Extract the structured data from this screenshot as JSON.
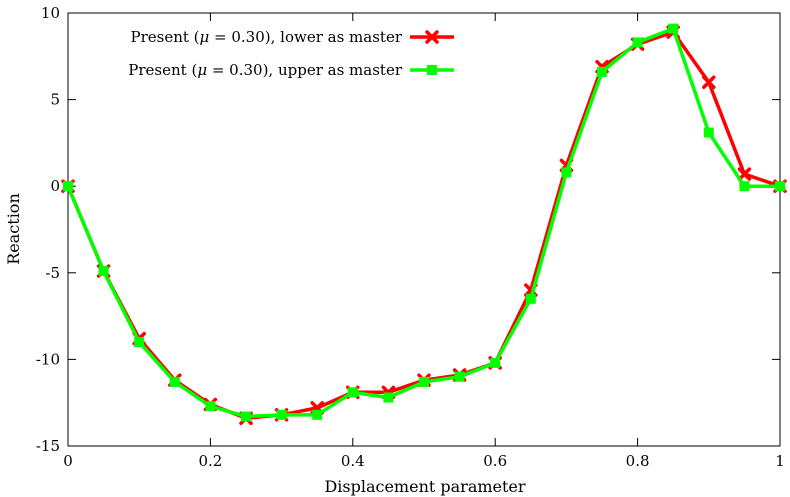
{
  "chart_data": {
    "type": "line",
    "xlabel": "Displacement parameter",
    "ylabel": "Reaction",
    "xlim": [
      0,
      1
    ],
    "ylim": [
      -15,
      10
    ],
    "xticks": [
      0,
      0.2,
      0.4,
      0.6,
      0.8,
      1
    ],
    "xtick_labels": [
      "0",
      "0.2",
      "0.4",
      "0.6",
      "0.8",
      "1"
    ],
    "yticks": [
      -15,
      -10,
      -5,
      0,
      5,
      10
    ],
    "ytick_labels": [
      "-15",
      "-10",
      "-5",
      "0",
      "5",
      "10"
    ],
    "grid": false,
    "legend_position": "top-left",
    "series": [
      {
        "name": "Present (μ = 0.30), lower as master",
        "legend_prefix": "Present (",
        "legend_mu": "μ",
        "legend_suffix": " = 0.30), lower as master",
        "color": "#ff0000",
        "marker": "cross",
        "x": [
          0,
          0.05,
          0.1,
          0.15,
          0.2,
          0.25,
          0.3,
          0.35,
          0.4,
          0.45,
          0.5,
          0.55,
          0.6,
          0.65,
          0.7,
          0.75,
          0.8,
          0.85,
          0.9,
          0.95,
          1
        ],
        "y": [
          0,
          -4.9,
          -8.8,
          -11.2,
          -12.6,
          -13.4,
          -13.2,
          -12.8,
          -11.9,
          -11.9,
          -11.2,
          -10.9,
          -10.2,
          -6.0,
          1.2,
          6.9,
          8.2,
          8.9,
          6.0,
          0.7,
          0
        ]
      },
      {
        "name": "Present (μ = 0.30), upper as master",
        "legend_prefix": "Present (",
        "legend_mu": "μ",
        "legend_suffix": " = 0.30), upper as master",
        "color": "#00ff00",
        "marker": "square",
        "x": [
          0,
          0.05,
          0.1,
          0.15,
          0.2,
          0.25,
          0.3,
          0.35,
          0.4,
          0.45,
          0.5,
          0.55,
          0.6,
          0.65,
          0.7,
          0.75,
          0.8,
          0.85,
          0.9,
          0.95,
          1
        ],
        "y": [
          0,
          -4.9,
          -9.0,
          -11.3,
          -12.7,
          -13.3,
          -13.2,
          -13.2,
          -11.9,
          -12.2,
          -11.3,
          -11.0,
          -10.2,
          -6.5,
          0.8,
          6.6,
          8.3,
          9.1,
          3.1,
          0,
          0
        ]
      }
    ]
  }
}
